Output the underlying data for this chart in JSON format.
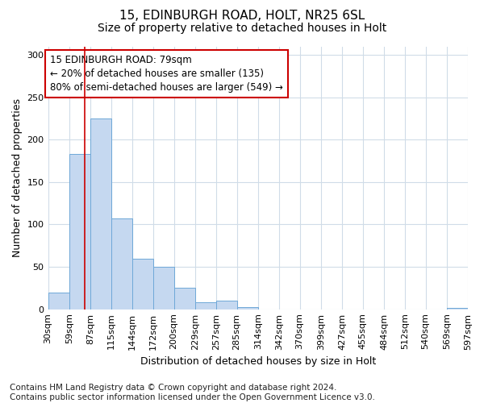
{
  "title1": "15, EDINBURGH ROAD, HOLT, NR25 6SL",
  "title2": "Size of property relative to detached houses in Holt",
  "xlabel": "Distribution of detached houses by size in Holt",
  "ylabel": "Number of detached properties",
  "bin_edges": [
    30,
    59,
    87,
    115,
    144,
    172,
    200,
    229,
    257,
    285,
    314,
    342,
    370,
    399,
    427,
    455,
    484,
    512,
    540,
    569,
    597
  ],
  "bar_heights": [
    20,
    183,
    225,
    107,
    60,
    50,
    25,
    8,
    10,
    3,
    0,
    0,
    0,
    0,
    0,
    0,
    0,
    0,
    0,
    2
  ],
  "bar_color": "#c5d8f0",
  "bar_edge_color": "#6fa8d8",
  "grid_color": "#d0dce8",
  "red_line_x": 79,
  "annotation_text": "15 EDINBURGH ROAD: 79sqm\n← 20% of detached houses are smaller (135)\n80% of semi-detached houses are larger (549) →",
  "annotation_box_color": "#ffffff",
  "annotation_box_edge_color": "#cc0000",
  "red_line_color": "#cc0000",
  "ylim": [
    0,
    310
  ],
  "yticks": [
    0,
    50,
    100,
    150,
    200,
    250,
    300
  ],
  "footnote": "Contains HM Land Registry data © Crown copyright and database right 2024.\nContains public sector information licensed under the Open Government Licence v3.0.",
  "title1_fontsize": 11,
  "title2_fontsize": 10,
  "xlabel_fontsize": 9,
  "ylabel_fontsize": 9,
  "tick_fontsize": 8,
  "annot_fontsize": 8.5,
  "footnote_fontsize": 7.5
}
